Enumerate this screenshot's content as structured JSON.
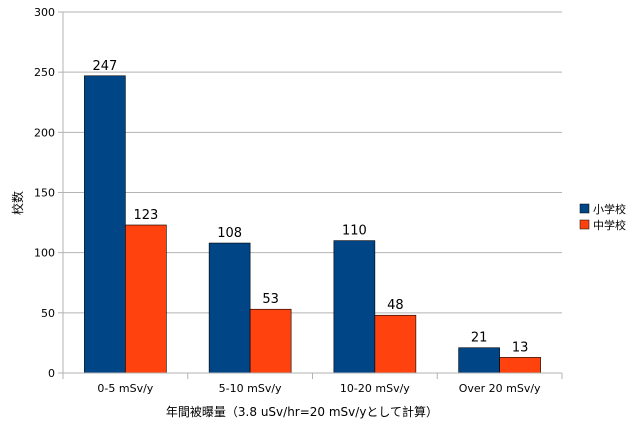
{
  "chart_data": {
    "type": "bar",
    "title": "",
    "xlabel": "年間被曝量（3.8 uSv/hr=20 mSv/yとして計算）",
    "ylabel": "校数",
    "categories": [
      "0-5 mSv/y",
      "5-10 mSv/y",
      "10-20 mSv/y",
      "Over 20 mSv/y"
    ],
    "series": [
      {
        "name": "小学校",
        "values": [
          247,
          108,
          110,
          21
        ],
        "color": "#004586"
      },
      {
        "name": "中学校",
        "values": [
          123,
          53,
          48,
          13
        ],
        "color": "#ff420e"
      }
    ],
    "ylim": [
      0,
      300
    ],
    "yticks": [
      0,
      50,
      100,
      150,
      200,
      250,
      300
    ],
    "grid": true,
    "legend": "right",
    "data_labels": true
  }
}
